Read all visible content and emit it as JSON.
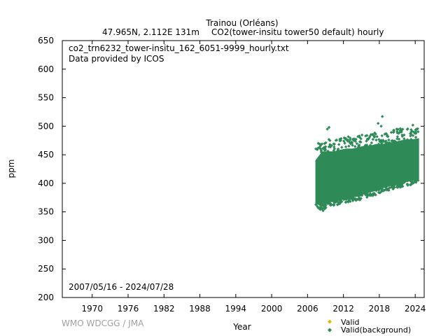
{
  "header": {
    "station": "Trainou (Orléans)",
    "location": "47.965N, 2.112E 131m",
    "dataset": "CO2(tower-insitu tower50 default) hourly"
  },
  "annotations": {
    "filename": "co2_trn6232_tower-insitu_162_6051-9999_hourly.txt",
    "provider": "Data provided by ICOS",
    "date_range": "2007/05/16 - 2024/07/28"
  },
  "watermark": "WMO WDCGG / JMA",
  "colors": {
    "valid": "#e0b800",
    "background": "#2e8b57",
    "axis": "#000000"
  },
  "chart_data": {
    "type": "scatter",
    "xlabel": "Year",
    "ylabel": "ppm",
    "xlim": [
      1965,
      2025.5
    ],
    "ylim": [
      200,
      650
    ],
    "xticks": [
      1970,
      1976,
      1982,
      1988,
      1994,
      2000,
      2006,
      2012,
      2018,
      2024
    ],
    "yticks": [
      200,
      250,
      300,
      350,
      400,
      450,
      500,
      550,
      600,
      650
    ],
    "legend": {
      "placement": "bottom-right",
      "entries": [
        "Valid",
        "Valid(background)"
      ]
    },
    "series": [
      {
        "name": "Valid",
        "marker": "diamond",
        "color": "#e0b800",
        "points": []
      },
      {
        "name": "Valid(background)",
        "marker": "diamond",
        "color": "#2e8b57",
        "envelope": [
          {
            "x": 2007.4,
            "low": 365,
            "high": 440
          },
          {
            "x": 2008.5,
            "low": 360,
            "high": 455
          },
          {
            "x": 2009.5,
            "low": 368,
            "high": 455
          },
          {
            "x": 2010.5,
            "low": 368,
            "high": 455
          },
          {
            "x": 2011.5,
            "low": 372,
            "high": 458
          },
          {
            "x": 2012.5,
            "low": 375,
            "high": 460
          },
          {
            "x": 2013.5,
            "low": 376,
            "high": 460
          },
          {
            "x": 2014.5,
            "low": 378,
            "high": 462
          },
          {
            "x": 2015.5,
            "low": 382,
            "high": 465
          },
          {
            "x": 2016.5,
            "low": 385,
            "high": 465
          },
          {
            "x": 2017.5,
            "low": 388,
            "high": 468
          },
          {
            "x": 2018.5,
            "low": 392,
            "high": 468
          },
          {
            "x": 2019.5,
            "low": 395,
            "high": 470
          },
          {
            "x": 2020.5,
            "low": 398,
            "high": 472
          },
          {
            "x": 2021.5,
            "low": 400,
            "high": 474
          },
          {
            "x": 2022.5,
            "low": 403,
            "high": 476
          },
          {
            "x": 2023.5,
            "low": 405,
            "high": 476
          },
          {
            "x": 2024.55,
            "low": 408,
            "high": 478
          }
        ],
        "outliers": [
          {
            "x": 2007.8,
            "y": 470
          },
          {
            "x": 2009.3,
            "y": 495
          },
          {
            "x": 2009.6,
            "y": 498
          },
          {
            "x": 2008.6,
            "y": 352
          },
          {
            "x": 2013.8,
            "y": 478
          },
          {
            "x": 2015.7,
            "y": 483
          },
          {
            "x": 2017.2,
            "y": 482
          },
          {
            "x": 2017.8,
            "y": 505
          },
          {
            "x": 2018.3,
            "y": 500
          },
          {
            "x": 2018.5,
            "y": 517
          },
          {
            "x": 2020.9,
            "y": 495
          },
          {
            "x": 2021.7,
            "y": 490
          },
          {
            "x": 2023.6,
            "y": 502
          },
          {
            "x": 2024.2,
            "y": 495
          }
        ]
      }
    ]
  }
}
